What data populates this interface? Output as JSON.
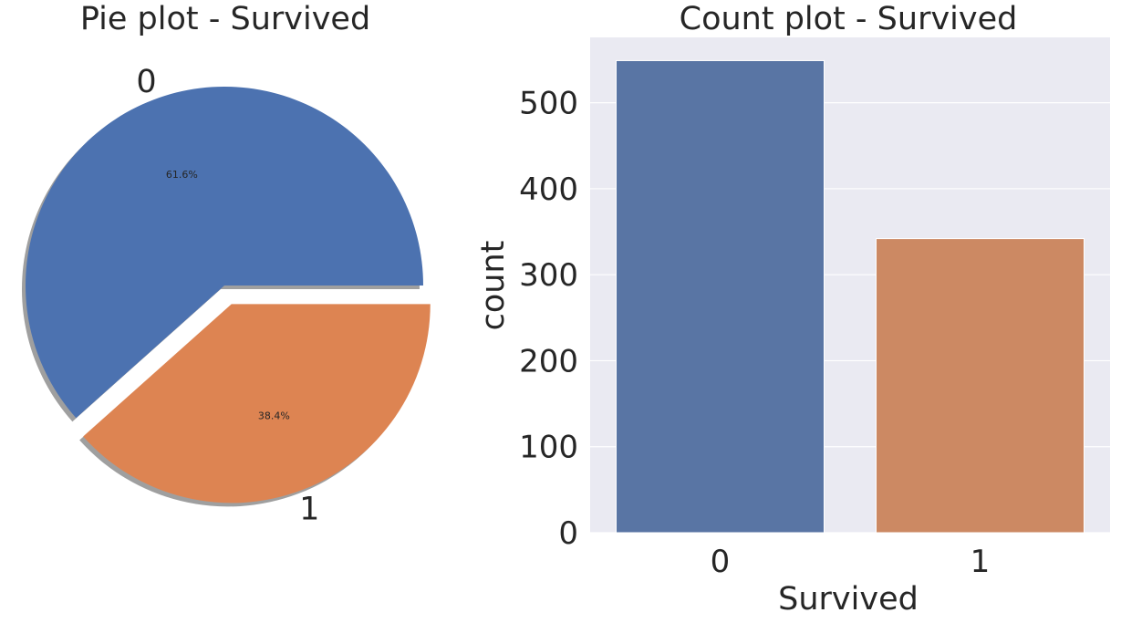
{
  "chart_data": [
    {
      "type": "pie",
      "title": "Pie plot - Survived",
      "categories": [
        "0",
        "1"
      ],
      "values": [
        61.6,
        38.4
      ],
      "labels": [
        "0",
        "1"
      ],
      "autopct": [
        "61.6%",
        "38.4%"
      ],
      "explode": [
        0,
        0.1
      ],
      "shadow": true,
      "colors": [
        "#4c72b0",
        "#dd8452"
      ]
    },
    {
      "type": "bar",
      "title": "Count plot - Survived",
      "categories": [
        "0",
        "1"
      ],
      "values": [
        549,
        342
      ],
      "xlabel": "Survived",
      "ylabel": "count",
      "ylim": [
        0,
        576
      ],
      "yticks": [
        "0",
        "100",
        "200",
        "300",
        "400",
        "500"
      ],
      "grid": true,
      "background": "#eaeaf2",
      "colors": [
        "#5975a4",
        "#cc8963"
      ]
    }
  ]
}
